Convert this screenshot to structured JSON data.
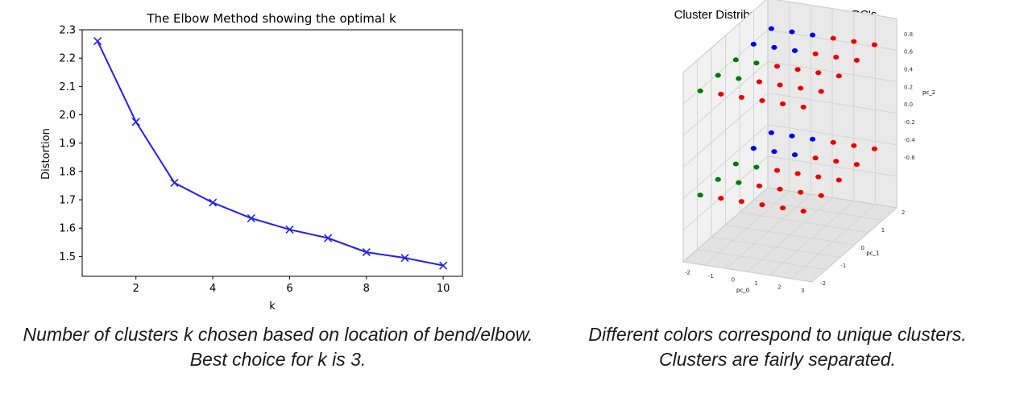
{
  "chart_data": [
    {
      "type": "line",
      "title": "The Elbow Method showing the optimal k",
      "xlabel": "k",
      "ylabel": "Distortion",
      "x": [
        1,
        2,
        3,
        4,
        5,
        6,
        7,
        8,
        9,
        10
      ],
      "series": [
        {
          "values": [
            2.26,
            1.975,
            1.76,
            1.69,
            1.635,
            1.595,
            1.565,
            1.515,
            1.495,
            1.468
          ],
          "color": "#1f1fff",
          "marker": "x"
        }
      ],
      "xlim": [
        0.6,
        10.5
      ],
      "ylim": [
        1.43,
        2.3
      ],
      "xticks": [
        "2",
        "4",
        "6",
        "8",
        "10"
      ],
      "yticks": [
        "1.5",
        "1.6",
        "1.7",
        "1.8",
        "1.9",
        "2.0",
        "2.1",
        "2.2",
        "2.3"
      ],
      "grid": false
    },
    {
      "type": "scatter",
      "title": "Cluster Distribution Across Top 3 PC's",
      "axis_labels": {
        "x": "pc_0",
        "y": "pc_1",
        "z": "pc_2"
      },
      "x_ticks": [
        "-2",
        "-1",
        "0",
        "1",
        "2",
        "3"
      ],
      "y_ticks": [
        "-2",
        "-1",
        "0",
        "1",
        "2"
      ],
      "z_ticks": [
        "0.8",
        "0.6",
        "0.4",
        "0.2",
        "0.0",
        "-0.2",
        "-0.4",
        "-0.6"
      ],
      "cluster_colors": [
        "#0000ee",
        "#007a00",
        "#ee0000"
      ],
      "grid": true
    }
  ],
  "captions": {
    "left": "Number of clusters k chosen based on location of bend/elbow. Best choice for k is 3.",
    "right": "Different colors correspond to unique clusters. Clusters are fairly separated."
  }
}
